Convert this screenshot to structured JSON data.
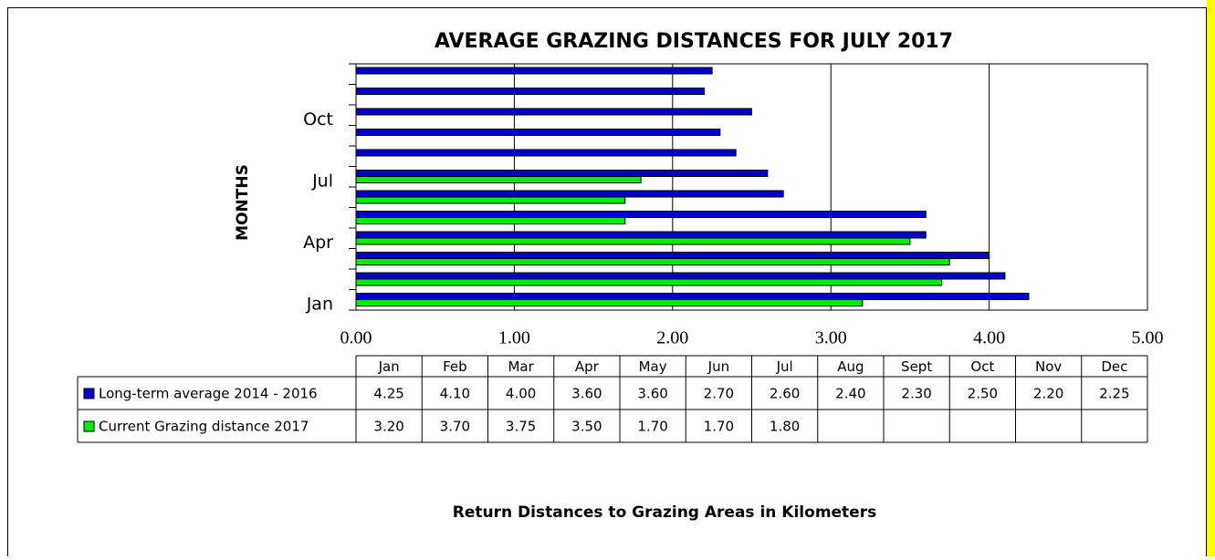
{
  "chart_data": {
    "type": "barh",
    "title": "AVERAGE GRAZING DISTANCES FOR JULY 2017",
    "y_label": "MONTHS",
    "x_label": "Return Distances to Grazing Areas in Kilometers",
    "categories": [
      "Jan",
      "Feb",
      "Mar",
      "Apr",
      "May",
      "Jun",
      "Jul",
      "Aug",
      "Sept",
      "Oct",
      "Nov",
      "Dec"
    ],
    "series": [
      {
        "name": "Long-term average 2014 - 2016",
        "color": "#0000cc",
        "values": [
          4.25,
          4.1,
          4.0,
          3.6,
          3.6,
          2.7,
          2.6,
          2.4,
          2.3,
          2.5,
          2.2,
          2.25
        ],
        "value_labels": [
          "4.25",
          "4.10",
          "4.00",
          "3.60",
          "3.60",
          "2.70",
          "2.60",
          "2.40",
          "2.30",
          "2.50",
          "2.20",
          "2.25"
        ]
      },
      {
        "name": "Current Grazing distance 2017",
        "color": "#00ee00",
        "values": [
          3.2,
          3.7,
          3.75,
          3.5,
          1.7,
          1.7,
          1.8,
          null,
          null,
          null,
          null,
          null
        ],
        "value_labels": [
          "3.20",
          "3.70",
          "3.75",
          "3.50",
          "1.70",
          "1.70",
          "1.80",
          null,
          null,
          null,
          null,
          null
        ]
      }
    ],
    "xlim": [
      0,
      5
    ],
    "xticks": [
      {
        "value": 0,
        "label": "0.00"
      },
      {
        "value": 1,
        "label": "1.00"
      },
      {
        "value": 2,
        "label": "2.00"
      },
      {
        "value": 3,
        "label": "3.00"
      },
      {
        "value": 4,
        "label": "4.00"
      },
      {
        "value": 5,
        "label": "5.00"
      }
    ],
    "grid": true
  }
}
